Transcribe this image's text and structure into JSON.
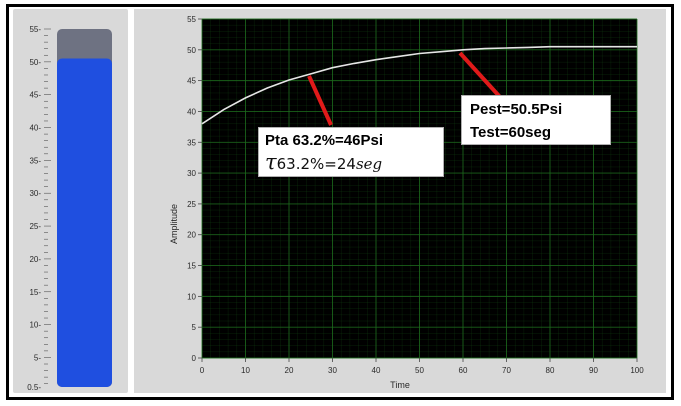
{
  "tank": {
    "level": 50.5,
    "min": 0.5,
    "max": 55,
    "tick_labels": [
      "55-",
      "50-",
      "45-",
      "40-",
      "35-",
      "30-",
      "25-",
      "20-",
      "15-",
      "10-",
      "5-",
      "0.5-"
    ],
    "colors": {
      "fill": "#1f4fe0",
      "empty": "#6e7282",
      "panel": "#d9d9d9"
    }
  },
  "chart": {
    "colors": {
      "plot_bg": "#000000",
      "grid": "#1d6b1d",
      "trace": "#e6e6e6",
      "pointer": "#e01a1a"
    },
    "annotations": {
      "pta": {
        "line1": "Pta 63.2%=46Psi",
        "tau_symbol": "τ",
        "tau_sub": "63.2%",
        "tau_eq": "=24",
        "tau_unit": "seg"
      },
      "pest": {
        "line1": "Pest=50.5Psi",
        "line2": "Test=60seg"
      }
    }
  },
  "chart_data": {
    "type": "line",
    "xlabel": "Time",
    "ylabel": "Amplitude",
    "xlim": [
      0,
      100
    ],
    "ylim": [
      0,
      55
    ],
    "x_ticks": [
      "0",
      "10",
      "20",
      "30",
      "40",
      "50",
      "60",
      "70",
      "80",
      "90",
      "100"
    ],
    "y_ticks": [
      "0",
      "5",
      "10",
      "15",
      "20",
      "25",
      "30",
      "35",
      "40",
      "45",
      "50",
      "55"
    ],
    "grid": true,
    "series": [
      {
        "x": [
          0,
          5,
          10,
          15,
          20,
          25,
          30,
          35,
          40,
          45,
          50,
          55,
          60,
          65,
          70,
          75,
          80,
          85,
          90,
          95,
          100
        ],
        "y": [
          38,
          40.3,
          42.2,
          43.8,
          45.1,
          46.1,
          47.1,
          47.8,
          48.4,
          48.9,
          49.4,
          49.7,
          50,
          50.2,
          50.3,
          50.4,
          50.5,
          50.5,
          50.5,
          50.5,
          50.5
        ]
      }
    ]
  }
}
